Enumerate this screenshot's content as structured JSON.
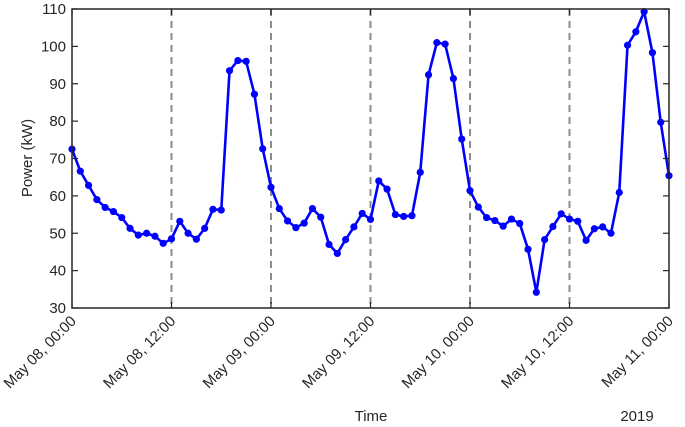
{
  "chart_data": {
    "type": "line",
    "title": "",
    "xlabel": "Time",
    "ylabel": "Power (kW)",
    "year_label": "2019",
    "xlim": [
      "May 08, 00:00",
      "May 11, 00:00"
    ],
    "ylim": [
      30,
      110
    ],
    "y_ticks": [
      30,
      40,
      50,
      60,
      70,
      80,
      90,
      100,
      110
    ],
    "x_ticks": [
      "May 08, 00:00",
      "May 08, 12:00",
      "May 09, 00:00",
      "May 09, 12:00",
      "May 10, 00:00",
      "May 10, 12:00",
      "May 11, 00:00"
    ],
    "vertical_gridlines": "dashed",
    "horizontal_gridlines": false,
    "series": [
      {
        "color": "#0000ff",
        "marker": "circle",
        "points": [
          [
            "May 08, 00:00",
            72.5
          ],
          [
            "May 08, 01:00",
            66.6
          ],
          [
            "May 08, 02:00",
            62.8
          ],
          [
            "May 08, 03:00",
            59.0
          ],
          [
            "May 08, 04:00",
            56.9
          ],
          [
            "May 08, 05:00",
            55.8
          ],
          [
            "May 08, 06:00",
            54.2
          ],
          [
            "May 08, 07:00",
            51.3
          ],
          [
            "May 08, 08:00",
            49.5
          ],
          [
            "May 08, 09:00",
            50.0
          ],
          [
            "May 08, 10:00",
            49.2
          ],
          [
            "May 08, 11:00",
            47.3
          ],
          [
            "May 08, 12:00",
            48.5
          ],
          [
            "May 08, 13:00",
            53.2
          ],
          [
            "May 08, 14:00",
            50.0
          ],
          [
            "May 08, 15:00",
            48.4
          ],
          [
            "May 08, 16:00",
            51.3
          ],
          [
            "May 08, 17:00",
            56.4
          ],
          [
            "May 08, 18:00",
            56.2
          ],
          [
            "May 08, 19:00",
            93.5
          ],
          [
            "May 08, 20:00",
            96.2
          ],
          [
            "May 08, 21:00",
            96.0
          ],
          [
            "May 08, 22:00",
            87.2
          ],
          [
            "May 08, 23:00",
            72.6
          ],
          [
            "May 09, 00:00",
            62.3
          ],
          [
            "May 09, 01:00",
            56.6
          ],
          [
            "May 09, 02:00",
            53.3
          ],
          [
            "May 09, 03:00",
            51.5
          ],
          [
            "May 09, 04:00",
            52.7
          ],
          [
            "May 09, 05:00",
            56.6
          ],
          [
            "May 09, 06:00",
            54.3
          ],
          [
            "May 09, 07:00",
            47.0
          ],
          [
            "May 09, 08:00",
            44.6
          ],
          [
            "May 09, 09:00",
            48.3
          ],
          [
            "May 09, 10:00",
            51.7
          ],
          [
            "May 09, 11:00",
            55.3
          ],
          [
            "May 09, 12:00",
            53.7
          ],
          [
            "May 09, 13:00",
            64.0
          ],
          [
            "May 09, 14:00",
            61.8
          ],
          [
            "May 09, 15:00",
            55.0
          ],
          [
            "May 09, 16:00",
            54.5
          ],
          [
            "May 09, 17:00",
            54.7
          ],
          [
            "May 09, 18:00",
            66.3
          ],
          [
            "May 09, 19:00",
            92.4
          ],
          [
            "May 09, 20:00",
            101.0
          ],
          [
            "May 09, 21:00",
            100.6
          ],
          [
            "May 09, 22:00",
            91.4
          ],
          [
            "May 09, 23:00",
            75.2
          ],
          [
            "May 10, 00:00",
            61.4
          ],
          [
            "May 10, 01:00",
            57.0
          ],
          [
            "May 10, 02:00",
            54.2
          ],
          [
            "May 10, 03:00",
            53.4
          ],
          [
            "May 10, 04:00",
            51.9
          ],
          [
            "May 10, 05:00",
            53.8
          ],
          [
            "May 10, 06:00",
            52.6
          ],
          [
            "May 10, 07:00",
            45.7
          ],
          [
            "May 10, 08:00",
            34.2
          ],
          [
            "May 10, 09:00",
            48.3
          ],
          [
            "May 10, 10:00",
            51.8
          ],
          [
            "May 10, 11:00",
            55.2
          ],
          [
            "May 10, 12:00",
            53.8
          ],
          [
            "May 10, 13:00",
            53.2
          ],
          [
            "May 10, 14:00",
            48.1
          ],
          [
            "May 10, 15:00",
            51.2
          ],
          [
            "May 10, 16:00",
            51.7
          ],
          [
            "May 10, 17:00",
            50.0
          ],
          [
            "May 10, 18:00",
            60.9
          ],
          [
            "May 10, 19:00",
            100.3
          ],
          [
            "May 10, 20:00",
            103.9
          ],
          [
            "May 10, 21:00",
            109.3
          ],
          [
            "May 10, 22:00",
            98.3
          ],
          [
            "May 10, 23:00",
            79.7
          ],
          [
            "May 11, 00:00",
            65.4
          ]
        ]
      }
    ]
  }
}
